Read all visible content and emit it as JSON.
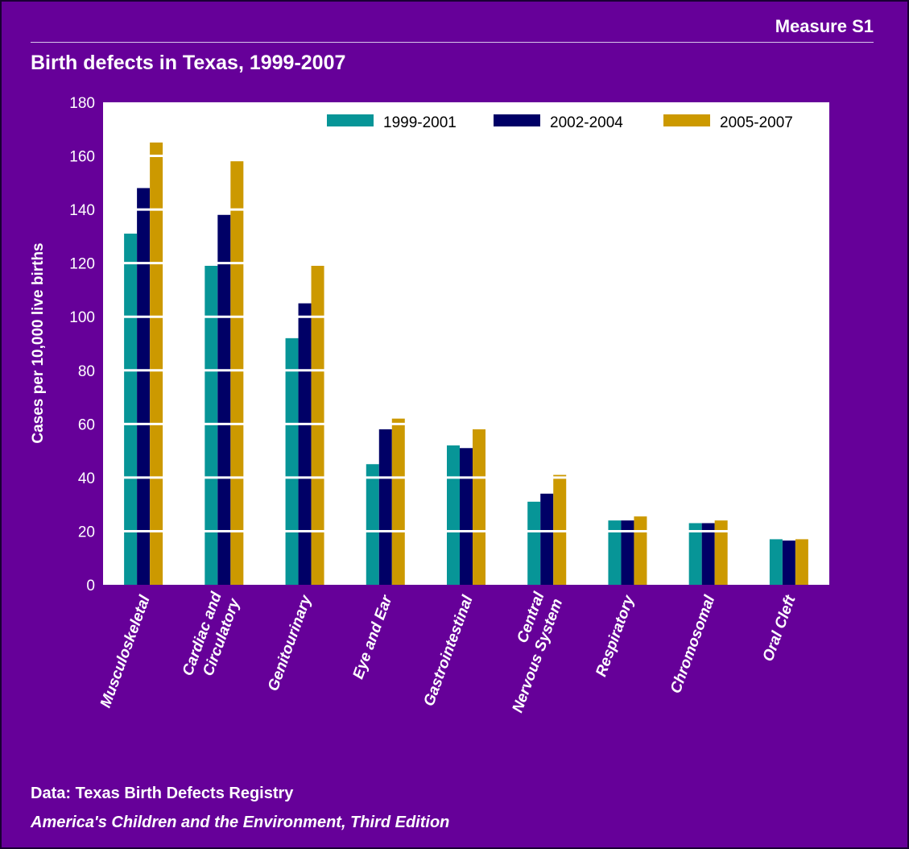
{
  "header": {
    "measure": "Measure S1",
    "title": "Birth defects in Texas, 1999-2007"
  },
  "footer": {
    "source": "Data: Texas Birth Defects Registry",
    "edition": "America's Children and the Environment, Third Edition"
  },
  "chart_data": {
    "type": "bar",
    "title": "Birth defects in Texas, 1999-2007",
    "xlabel": "",
    "ylabel": "Cases per 10,000 live births",
    "ylim": [
      0,
      180
    ],
    "yticks": [
      0,
      20,
      40,
      60,
      80,
      100,
      120,
      140,
      160,
      180
    ],
    "grid": true,
    "legend": "top-right",
    "categories": [
      [
        "Musculoskeletal"
      ],
      [
        "Cardiac and",
        "Circulatory"
      ],
      [
        "Genitourinary"
      ],
      [
        "Eye and Ear"
      ],
      [
        "Gastrointestinal"
      ],
      [
        "Central",
        "Nervous System"
      ],
      [
        "Respiratory"
      ],
      [
        "Chromosomal"
      ],
      [
        "Oral Cleft"
      ]
    ],
    "series": [
      {
        "name": "1999-2001",
        "color": "#079597",
        "values": [
          131,
          119,
          92,
          45,
          52,
          31,
          24,
          23,
          17
        ]
      },
      {
        "name": "2002-2004",
        "color": "#000066",
        "values": [
          148,
          138,
          105,
          58,
          51,
          34,
          24,
          23,
          16.5
        ]
      },
      {
        "name": "2005-2007",
        "color": "#CC9900",
        "values": [
          165,
          158,
          119,
          62,
          58,
          41,
          25.5,
          24,
          17
        ]
      }
    ]
  }
}
